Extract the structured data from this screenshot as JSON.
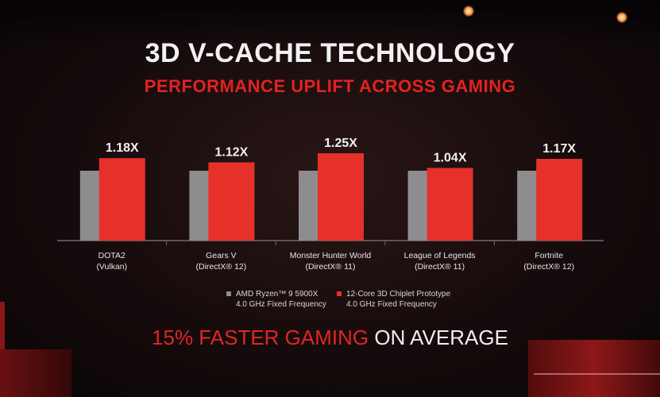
{
  "title": "3D V-CACHE TECHNOLOGY",
  "subtitle": "PERFORMANCE UPLIFT ACROSS GAMING",
  "colors": {
    "baseline": "#8d8d8f",
    "prototype": "#e6312b",
    "accent": "#e02525"
  },
  "chart_data": {
    "type": "bar",
    "categories": [
      {
        "name": "DOTA2",
        "api": "(Vulkan)"
      },
      {
        "name": "Gears V",
        "api": "(DirectX® 12)"
      },
      {
        "name": "Monster Hunter World",
        "api": "(DirectX® 11)"
      },
      {
        "name": "League of Legends",
        "api": "(DirectX® 11)"
      },
      {
        "name": "Fortnite",
        "api": "(DirectX® 12)"
      }
    ],
    "series": [
      {
        "name": "AMD Ryzen™ 9 5900X",
        "note": "4.0 GHz Fixed Frequency",
        "values": [
          1.0,
          1.0,
          1.0,
          1.0,
          1.0
        ]
      },
      {
        "name": "12-Core 3D Chiplet Prototype",
        "note": "4.0 GHz Fixed Frequency",
        "values": [
          1.18,
          1.12,
          1.25,
          1.04,
          1.17
        ]
      }
    ],
    "data_labels": [
      "1.18X",
      "1.12X",
      "1.25X",
      "1.04X",
      "1.17X"
    ],
    "ylim": [
      0,
      1.25
    ]
  },
  "legend": {
    "baseline_name": "AMD Ryzen™ 9 5900X",
    "baseline_note": "4.0 GHz Fixed Frequency",
    "prototype_name": "12-Core 3D Chiplet Prototype",
    "prototype_note": "4.0 GHz Fixed Frequency"
  },
  "tagline": {
    "highlight": "15% FASTER GAMING",
    "rest": "ON AVERAGE"
  }
}
